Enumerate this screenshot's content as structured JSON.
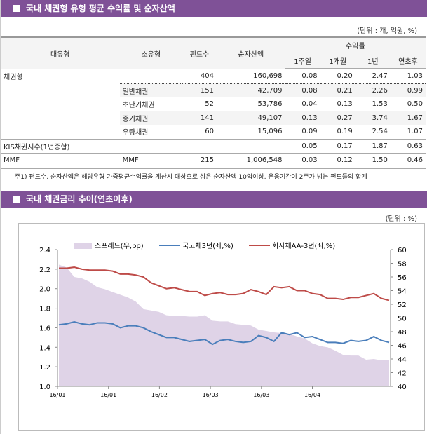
{
  "section1": {
    "title": "국내 채권형 유형 평균 수익률 및 순자산액",
    "unit": "(단위 : 개, 억원, %)"
  },
  "table": {
    "headers": {
      "major": "대유형",
      "minor": "소유형",
      "funds": "펀드수",
      "assets": "순자산액",
      "returns": "수익률",
      "periods": [
        "1주일",
        "1개월",
        "1년",
        "연초후"
      ]
    },
    "rows": [
      {
        "major": "채권형",
        "minor": "",
        "funds": "404",
        "assets": "160,698",
        "r": [
          "0.08",
          "0.20",
          "2.47",
          "1.03"
        ]
      },
      {
        "major": "",
        "minor": "일반채권",
        "funds": "151",
        "assets": "42,709",
        "r": [
          "0.08",
          "0.21",
          "2.26",
          "0.99"
        ]
      },
      {
        "major": "",
        "minor": "초단기채권",
        "funds": "52",
        "assets": "53,786",
        "r": [
          "0.04",
          "0.13",
          "1.53",
          "0.50"
        ]
      },
      {
        "major": "",
        "minor": "중기채권",
        "funds": "141",
        "assets": "49,107",
        "r": [
          "0.13",
          "0.27",
          "3.74",
          "1.67"
        ]
      },
      {
        "major": "",
        "minor": "우량채권",
        "funds": "60",
        "assets": "15,096",
        "r": [
          "0.09",
          "0.19",
          "2.54",
          "1.07"
        ]
      },
      {
        "major": "KIS채권지수(1년종합)",
        "minor": "",
        "funds": "",
        "assets": "",
        "r": [
          "0.05",
          "0.17",
          "1.87",
          "0.63"
        ]
      },
      {
        "major": "MMF",
        "minor": "MMF",
        "funds": "215",
        "assets": "1,006,548",
        "r": [
          "0.03",
          "0.12",
          "1.50",
          "0.46"
        ]
      }
    ]
  },
  "footnote": "주1) 펀드수, 순자산액은 해당유형 가중평균수익률을 계산시 대상으로 삼은 순자산액 10억이상, 운용기간이 2주가 넘는 펀드들의 합계",
  "section2": {
    "title": "국내 채권금리 추이(연초이후)",
    "unit": "(단위 : %)"
  },
  "colors": {
    "header": "#7f5197",
    "spread": "#dfd3e7",
    "gov": "#4a7ebb",
    "corp": "#be4b48"
  },
  "chart_data": {
    "type": "line",
    "x_tick_labels": [
      "16/01",
      "16/01",
      "16/02",
      "16/03",
      "16/03",
      "16/04"
    ],
    "y_left": {
      "range": [
        1.0,
        2.4
      ],
      "ticks": [
        "1.0",
        "1.2",
        "1.4",
        "1.6",
        "1.8",
        "2.0",
        "2.2",
        "2.4"
      ]
    },
    "y_right": {
      "range": [
        40,
        60
      ],
      "ticks": [
        "40",
        "42",
        "44",
        "46",
        "48",
        "50",
        "52",
        "54",
        "56",
        "58",
        "60"
      ]
    },
    "grid": false,
    "legend": "top",
    "series": [
      {
        "name": "스프레드(우,bp)",
        "type": "area",
        "axis": "right",
        "values": [
          57.8,
          57.4,
          56.0,
          55.8,
          55.3,
          54.5,
          54.2,
          53.8,
          53.4,
          53.0,
          52.4,
          51.3,
          51.1,
          50.9,
          50.4,
          50.3,
          50.3,
          50.2,
          50.2,
          50.4,
          49.6,
          49.5,
          49.5,
          49.1,
          49.0,
          48.9,
          48.3,
          48.1,
          47.9,
          47.8,
          47.7,
          47.3,
          47.0,
          46.3,
          45.9,
          45.7,
          45.2,
          44.6,
          44.5,
          44.5,
          43.9,
          44.0,
          43.8,
          43.9
        ]
      },
      {
        "name": "국고채3년(좌,%)",
        "type": "line",
        "axis": "left",
        "values": [
          1.63,
          1.64,
          1.66,
          1.64,
          1.63,
          1.65,
          1.65,
          1.64,
          1.6,
          1.62,
          1.62,
          1.6,
          1.56,
          1.53,
          1.5,
          1.5,
          1.48,
          1.46,
          1.47,
          1.48,
          1.43,
          1.47,
          1.48,
          1.46,
          1.45,
          1.46,
          1.52,
          1.5,
          1.46,
          1.55,
          1.53,
          1.55,
          1.5,
          1.51,
          1.48,
          1.45,
          1.45,
          1.44,
          1.47,
          1.46,
          1.47,
          1.51,
          1.47,
          1.45
        ]
      },
      {
        "name": "회사채AA-3년(좌,%)",
        "type": "line",
        "axis": "left",
        "values": [
          2.21,
          2.21,
          2.22,
          2.2,
          2.19,
          2.19,
          2.19,
          2.18,
          2.15,
          2.15,
          2.14,
          2.12,
          2.06,
          2.03,
          2.0,
          2.01,
          1.99,
          1.97,
          1.97,
          1.93,
          1.95,
          1.96,
          1.94,
          1.94,
          1.95,
          1.99,
          1.97,
          1.94,
          2.02,
          2.01,
          2.02,
          1.98,
          1.98,
          1.95,
          1.94,
          1.9,
          1.9,
          1.89,
          1.91,
          1.91,
          1.93,
          1.95,
          1.9,
          1.88
        ]
      }
    ]
  }
}
